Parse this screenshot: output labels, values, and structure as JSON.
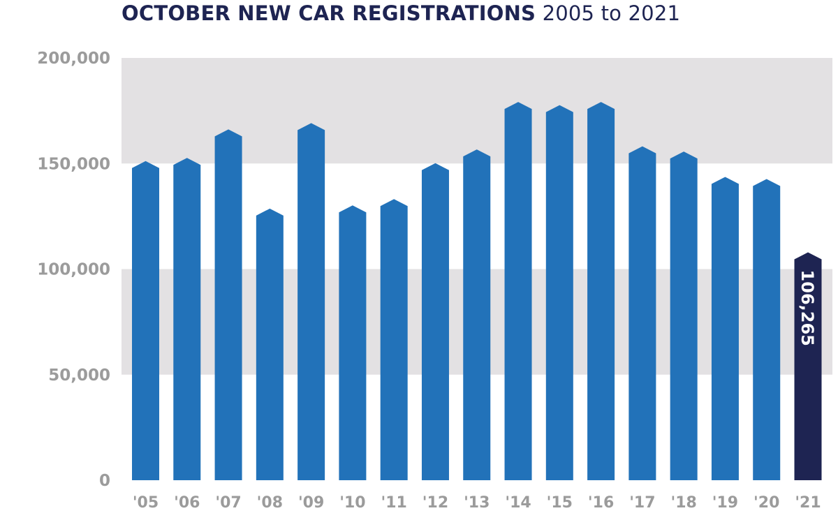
{
  "chart_data": {
    "type": "bar",
    "title": "OCTOBER NEW CAR REGISTRATIONS",
    "subtitle": "2005 to 2021",
    "categories": [
      "'05",
      "'06",
      "'07",
      "'08",
      "'09",
      "'10",
      "'11",
      "'12",
      "'13",
      "'14",
      "'15",
      "'16",
      "'17",
      "'18",
      "'19",
      "'20",
      "'21"
    ],
    "values": [
      149500,
      151000,
      164500,
      127000,
      167500,
      128500,
      131500,
      148500,
      155000,
      177500,
      176000,
      177500,
      156500,
      154000,
      142000,
      141000,
      106265
    ],
    "yticks": [
      "0",
      "50,000",
      "100,000",
      "150,000",
      "200,000"
    ],
    "ylim": [
      0,
      200000
    ],
    "highlight": {
      "index": 16,
      "label": "106,265",
      "color": "#1e2452"
    },
    "bar_color": "#2272b9",
    "band_color": "#e3e1e3",
    "grid": "alternating bands"
  }
}
